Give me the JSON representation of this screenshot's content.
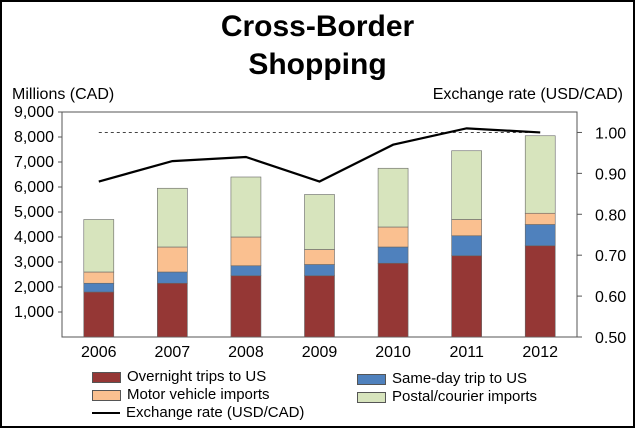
{
  "chart_data": {
    "type": "bar",
    "title": [
      "Cross-Border",
      "Shopping"
    ],
    "ylabel_left": "Millions (CAD)",
    "ylabel_right": "Exchange rate (USD/CAD)",
    "categories": [
      "2006",
      "2007",
      "2008",
      "2009",
      "2010",
      "2011",
      "2012"
    ],
    "stacked": true,
    "ylim_left": [
      0,
      9000
    ],
    "yticks_left": [
      "1,000",
      "2,000",
      "3,000",
      "4,000",
      "5,000",
      "6,000",
      "7,000",
      "8,000",
      "9,000"
    ],
    "ylim_right": [
      0.5,
      1.05
    ],
    "yticks_right": [
      "0.50",
      "0.60",
      "0.70",
      "0.80",
      "0.90",
      "1.00"
    ],
    "reference_line_right": 1.0,
    "series": [
      {
        "name": "Overnight trips to US",
        "color": "#953735",
        "values": [
          1800,
          2150,
          2450,
          2450,
          2950,
          3250,
          3650
        ]
      },
      {
        "name": "Same-day trip to US",
        "color": "#4f81bd",
        "values": [
          350,
          450,
          400,
          450,
          650,
          800,
          850
        ]
      },
      {
        "name": "Motor vehicle imports",
        "color": "#fac090",
        "values": [
          450,
          1000,
          1150,
          600,
          800,
          650,
          450
        ]
      },
      {
        "name": "Postal/courier imports",
        "color": "#d7e4bd",
        "values": [
          2100,
          2350,
          2400,
          2200,
          2350,
          2750,
          3100
        ]
      }
    ],
    "line_series": {
      "name": "Exchange rate (USD/CAD)",
      "axis": "right",
      "color": "#000000",
      "values": [
        0.88,
        0.93,
        0.94,
        0.88,
        0.97,
        1.01,
        1.0
      ]
    },
    "grid": false,
    "legend_position": "bottom"
  }
}
